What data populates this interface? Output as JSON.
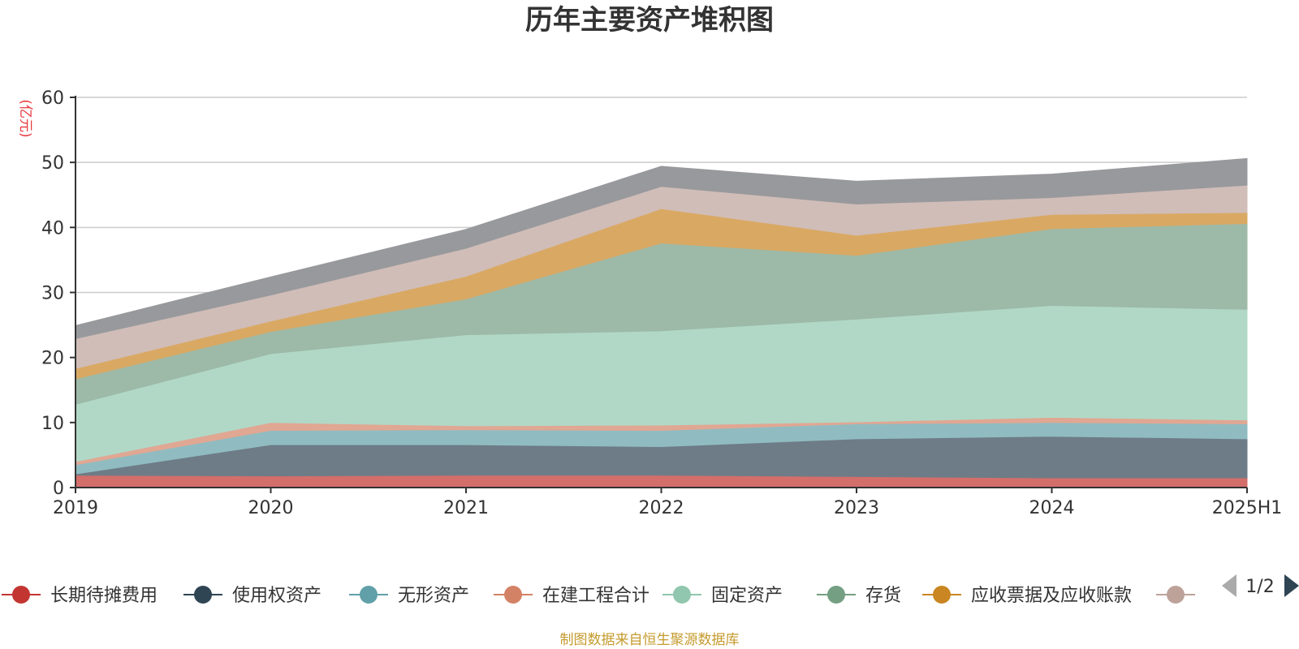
{
  "chart_data": {
    "type": "area",
    "stacked": true,
    "title": "历年主要资产堆积图",
    "y_unit": "(亿元)",
    "categories": [
      "2019",
      "2020",
      "2021",
      "2022",
      "2023",
      "2024",
      "2025H1"
    ],
    "ylim": [
      0,
      60
    ],
    "y_ticks": [
      0,
      10,
      20,
      30,
      40,
      50,
      60
    ],
    "grid": true,
    "series": [
      {
        "name": "长期待摊费用",
        "color": "#c23531",
        "fill": "#d36e6b",
        "values": [
          1.9,
          1.8,
          1.9,
          1.9,
          1.7,
          1.5,
          1.5
        ]
      },
      {
        "name": "使用权资产",
        "color": "#2f4554",
        "fill": "#6e7c87",
        "values": [
          0.2,
          4.8,
          4.7,
          4.4,
          5.8,
          6.4,
          6.0
        ]
      },
      {
        "name": "无形资产",
        "color": "#61a0a8",
        "fill": "#90bcc1",
        "values": [
          1.4,
          2.2,
          2.3,
          2.5,
          2.3,
          2.1,
          2.3
        ]
      },
      {
        "name": "在建工程合计",
        "color": "#d48265",
        "fill": "#e0a793",
        "values": [
          0.5,
          1.2,
          0.6,
          0.8,
          0.3,
          0.8,
          0.6
        ]
      },
      {
        "name": "固定资产",
        "color": "#91c7ae",
        "fill": "#b1d8c6",
        "values": [
          8.8,
          10.6,
          14.0,
          14.5,
          15.8,
          17.2,
          17.0
        ]
      },
      {
        "name": "存货",
        "color": "#749f83",
        "fill": "#9db9a7",
        "values": [
          3.9,
          3.4,
          5.5,
          13.5,
          9.8,
          11.8,
          13.2
        ]
      },
      {
        "name": "应收票据及应收账款",
        "color": "#ca8622",
        "fill": "#d9a964",
        "values": [
          1.6,
          1.6,
          3.5,
          5.3,
          3.1,
          2.2,
          1.7
        ]
      },
      {
        "name": "",
        "color": "#bda29a",
        "fill": "#d0bdb8",
        "values": [
          4.6,
          4.0,
          4.3,
          3.4,
          4.8,
          2.6,
          4.2
        ]
      },
      {
        "name": "",
        "color": "#6e7074",
        "fill": "#98999c",
        "values": [
          2.0,
          2.8,
          2.9,
          3.1,
          3.5,
          3.6,
          4.1
        ]
      }
    ]
  },
  "legend": {
    "page": "1/2",
    "prev_icon": "triangle-left-icon",
    "next_icon": "triangle-right-icon"
  },
  "footer": {
    "source": "制图数据来自恒生聚源数据库"
  }
}
